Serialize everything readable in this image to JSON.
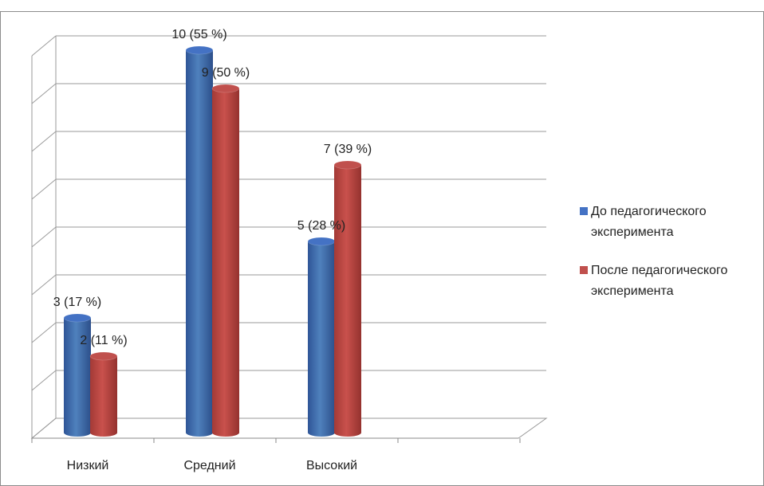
{
  "chart_data": {
    "type": "bar",
    "style": "3d-cylinder",
    "categories": [
      "Низкий",
      "Средний",
      "Высокий"
    ],
    "series": [
      {
        "name": "До педагогического эксперимента",
        "color": "#4472C4",
        "values": [
          3,
          10,
          5
        ],
        "labels": [
          "3 (17 %)",
          "10 (55 %)",
          "5 (28 %)"
        ]
      },
      {
        "name": "После педагогического эксперимента",
        "color": "#C0504D",
        "values": [
          2,
          9,
          7
        ],
        "labels": [
          "2 (11 %)",
          "9 (50 %)",
          "7 (39 %)"
        ]
      }
    ],
    "ylim": [
      0,
      10
    ],
    "grid": true,
    "legend": "right"
  }
}
